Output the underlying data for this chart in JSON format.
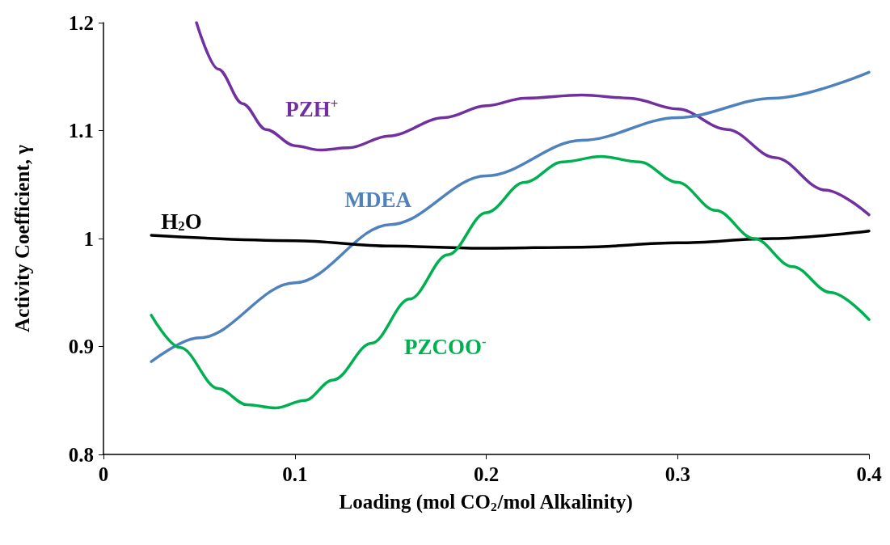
{
  "chart_data": {
    "type": "line",
    "xlabel": "Loading (mol CO$_{2}$/mol Alkalinity)",
    "ylabel": "Activity Coefficient, γ",
    "xlim": [
      0,
      0.4
    ],
    "xticks": [
      0,
      0.1,
      0.2,
      0.3,
      0.4
    ],
    "ylim": [
      0.8,
      1.2
    ],
    "yticks": [
      0.8,
      0.9,
      1,
      1.1,
      1.2
    ],
    "grid": false,
    "legend": false,
    "marker": "none",
    "line_style": "solid",
    "series": [
      {
        "name": "PZH$^{+}$",
        "color": "#7030a0",
        "x": [
          0.0486,
          0.06,
          0.0727,
          0.085,
          0.1,
          0.113,
          0.128,
          0.149,
          0.178,
          0.2,
          0.22,
          0.25,
          0.275,
          0.3,
          0.326,
          0.351,
          0.377,
          0.4
        ],
        "values": [
          1.2,
          1.157,
          1.125,
          1.101,
          1.086,
          1.082,
          1.084,
          1.095,
          1.112,
          1.123,
          1.13,
          1.133,
          1.13,
          1.12,
          1.101,
          1.075,
          1.045,
          1.022
        ]
      },
      {
        "name": "MDEA",
        "color": "#4f81bd",
        "x": [
          0.025,
          0.05,
          0.1,
          0.15,
          0.2,
          0.25,
          0.3,
          0.35,
          0.4
        ],
        "values": [
          0.886,
          0.908,
          0.959,
          1.013,
          1.058,
          1.091,
          1.112,
          1.13,
          1.154
        ]
      },
      {
        "name": "H$_{2}$O",
        "color": "#000000",
        "x": [
          0.025,
          0.1,
          0.15,
          0.2,
          0.25,
          0.3,
          0.35,
          0.4
        ],
        "values": [
          1.003,
          0.998,
          0.993,
          0.991,
          0.992,
          0.996,
          1.0,
          1.007
        ]
      },
      {
        "name": "PZCOO$^{-}$",
        "color": "#00b050",
        "x": [
          0.025,
          0.04,
          0.06,
          0.075,
          0.09,
          0.105,
          0.12,
          0.14,
          0.16,
          0.18,
          0.2,
          0.22,
          0.24,
          0.26,
          0.28,
          0.3,
          0.32,
          0.34,
          0.36,
          0.38,
          0.4
        ],
        "values": [
          0.929,
          0.899,
          0.861,
          0.846,
          0.843,
          0.85,
          0.869,
          0.903,
          0.944,
          0.985,
          1.024,
          1.052,
          1.071,
          1.076,
          1.071,
          1.052,
          1.026,
          1.0,
          0.974,
          0.95,
          0.925
        ]
      }
    ]
  }
}
